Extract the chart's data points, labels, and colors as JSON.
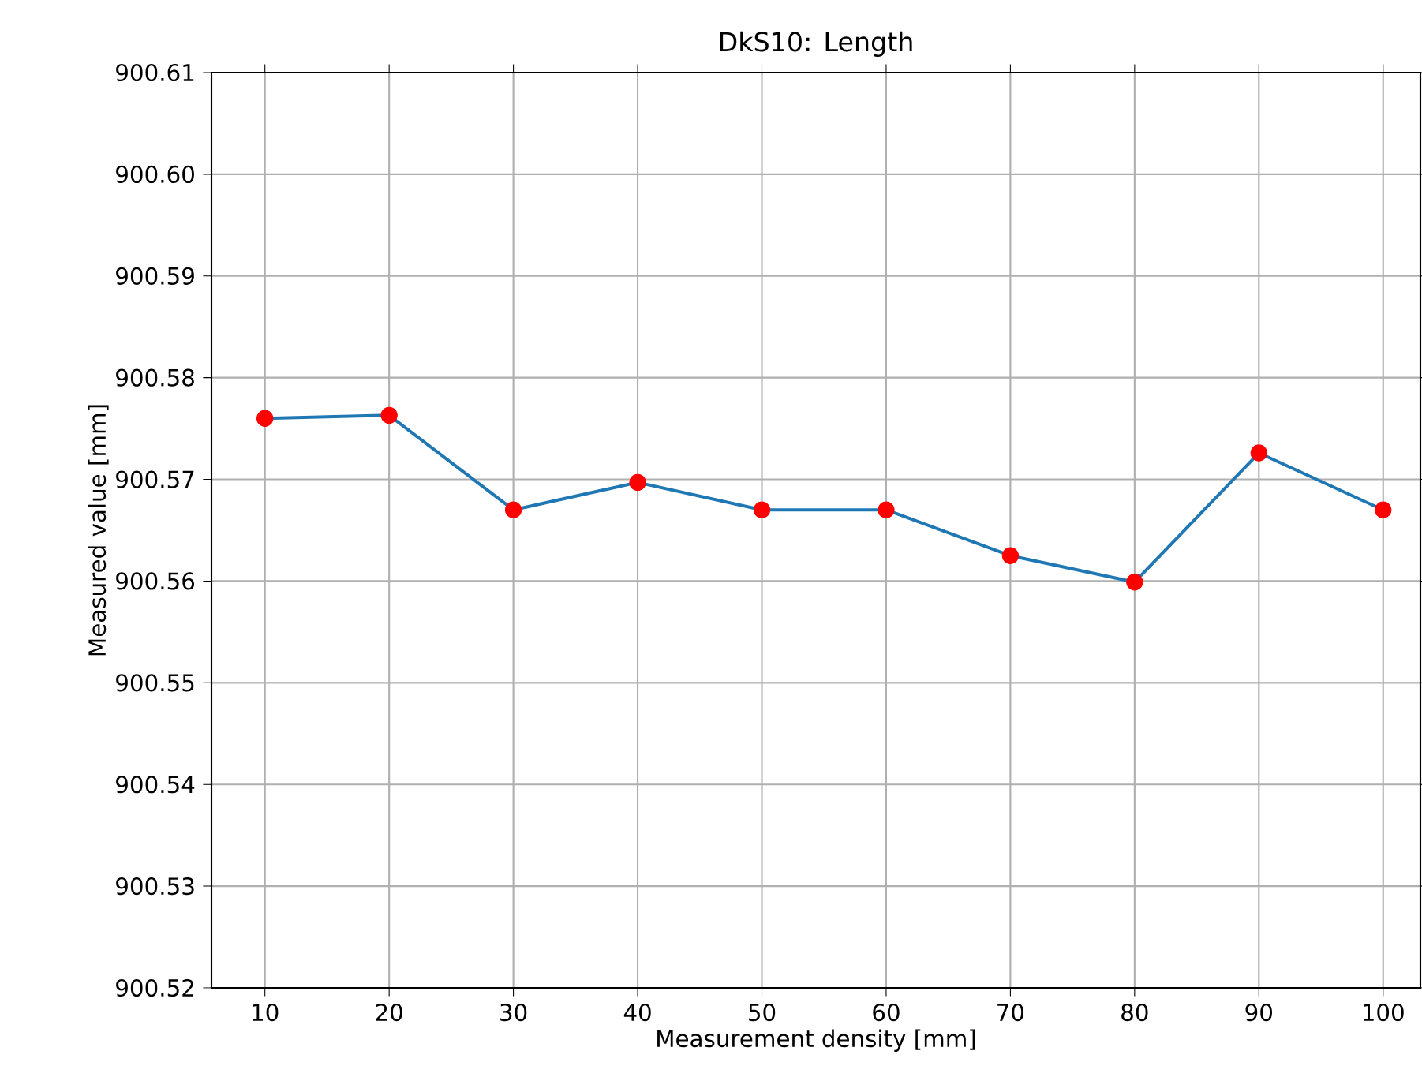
{
  "chart_data": {
    "type": "line",
    "title": "DkS10: Length",
    "xlabel": "Measurement density [mm]",
    "ylabel": "Measured value [mm]",
    "x": [
      10,
      20,
      30,
      40,
      50,
      60,
      70,
      80,
      90,
      100
    ],
    "series": [
      {
        "color": "#1f77b4",
        "colors": [
          "#ff0000",
          "#ff0000",
          "#ff0000",
          "#ff0000",
          "#ff0000",
          "#ff0000",
          "#ff0000",
          "#ff0000",
          "#ff0000",
          "#ff0000"
        ],
        "values": [
          900.576,
          900.5763,
          900.567,
          900.5697,
          900.567,
          900.567,
          900.5625,
          900.5599,
          900.5726,
          900.567
        ]
      }
    ],
    "xlim": [
      5.7,
      103
    ],
    "ylim": [
      900.52,
      900.61
    ],
    "xticks": [
      10,
      20,
      30,
      40,
      50,
      60,
      70,
      80,
      90,
      100
    ],
    "yticks": [
      {
        "value": 900.52,
        "label": "900.52"
      },
      {
        "value": 900.53,
        "label": "900.53"
      },
      {
        "value": 900.54,
        "label": "900.54"
      },
      {
        "value": 900.55,
        "label": "900.55"
      },
      {
        "value": 900.56,
        "label": "900.56"
      },
      {
        "value": 900.57,
        "label": "900.57"
      },
      {
        "value": 900.58,
        "label": "900.58"
      },
      {
        "value": 900.59,
        "label": "900.59"
      },
      {
        "value": 900.6,
        "label": "900.60"
      },
      {
        "value": 900.61,
        "label": "900.61"
      }
    ],
    "grid": true,
    "marker": "circle",
    "line_style": "solid"
  }
}
